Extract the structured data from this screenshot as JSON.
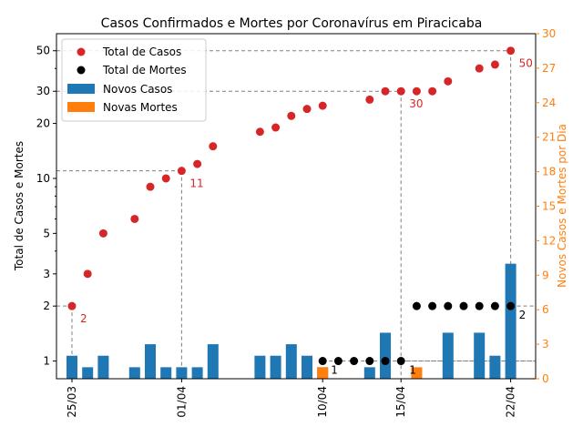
{
  "chart_data": {
    "type": "bar+scatter",
    "title": "Casos Confirmados e Mortes por Coronavírus em Piracicaba",
    "ylabel_left": "Total de Casos e Mortes",
    "ylabel_right": "Novos Casos e Mortes por Dia",
    "y_left_scale": "log",
    "y_left_ticks": [
      "1",
      "2",
      "3",
      "5",
      "10",
      "20",
      "30",
      "50"
    ],
    "y_right_lim": [
      0,
      30
    ],
    "y_right_ticks": [
      "0",
      "3",
      "6",
      "9",
      "12",
      "15",
      "18",
      "21",
      "24",
      "27",
      "30"
    ],
    "x_ticks": [
      {
        "day": 0,
        "label": "25/03"
      },
      {
        "day": 7,
        "label": "01/04"
      },
      {
        "day": 16,
        "label": "10/04"
      },
      {
        "day": 21,
        "label": "15/04"
      },
      {
        "day": 28,
        "label": "22/04"
      }
    ],
    "legend": [
      "Total de Casos",
      "Total de Mortes",
      "Novos Casos",
      "Novas Mortes"
    ],
    "total_cases": [
      {
        "day": 0,
        "value": 2
      },
      {
        "day": 1,
        "value": 3
      },
      {
        "day": 2,
        "value": 5
      },
      {
        "day": 4,
        "value": 6
      },
      {
        "day": 5,
        "value": 9
      },
      {
        "day": 6,
        "value": 10
      },
      {
        "day": 7,
        "value": 11
      },
      {
        "day": 8,
        "value": 12
      },
      {
        "day": 9,
        "value": 15
      },
      {
        "day": 12,
        "value": 18
      },
      {
        "day": 13,
        "value": 19
      },
      {
        "day": 14,
        "value": 22
      },
      {
        "day": 15,
        "value": 24
      },
      {
        "day": 16,
        "value": 25
      },
      {
        "day": 19,
        "value": 27
      },
      {
        "day": 20,
        "value": 30
      },
      {
        "day": 21,
        "value": 30
      },
      {
        "day": 22,
        "value": 30
      },
      {
        "day": 23,
        "value": 30
      },
      {
        "day": 24,
        "value": 34
      },
      {
        "day": 26,
        "value": 40
      },
      {
        "day": 27,
        "value": 42
      },
      {
        "day": 28,
        "value": 50
      }
    ],
    "total_deaths": [
      {
        "day": 16,
        "value": 1
      },
      {
        "day": 17,
        "value": 1
      },
      {
        "day": 18,
        "value": 1
      },
      {
        "day": 19,
        "value": 1
      },
      {
        "day": 20,
        "value": 1
      },
      {
        "day": 21,
        "value": 1
      },
      {
        "day": 22,
        "value": 2
      },
      {
        "day": 23,
        "value": 2
      },
      {
        "day": 24,
        "value": 2
      },
      {
        "day": 25,
        "value": 2
      },
      {
        "day": 26,
        "value": 2
      },
      {
        "day": 27,
        "value": 2
      },
      {
        "day": 28,
        "value": 2
      }
    ],
    "new_cases": [
      {
        "day": 0,
        "value": 2
      },
      {
        "day": 1,
        "value": 1
      },
      {
        "day": 2,
        "value": 2
      },
      {
        "day": 4,
        "value": 1
      },
      {
        "day": 5,
        "value": 3
      },
      {
        "day": 6,
        "value": 1
      },
      {
        "day": 7,
        "value": 1
      },
      {
        "day": 8,
        "value": 1
      },
      {
        "day": 9,
        "value": 3
      },
      {
        "day": 12,
        "value": 2
      },
      {
        "day": 13,
        "value": 2
      },
      {
        "day": 14,
        "value": 3
      },
      {
        "day": 15,
        "value": 2
      },
      {
        "day": 16,
        "value": 1
      },
      {
        "day": 19,
        "value": 1
      },
      {
        "day": 20,
        "value": 4
      },
      {
        "day": 24,
        "value": 4
      },
      {
        "day": 26,
        "value": 4
      },
      {
        "day": 27,
        "value": 2
      },
      {
        "day": 28,
        "value": 10
      }
    ],
    "new_deaths": [
      {
        "day": 16,
        "value": 1
      },
      {
        "day": 22,
        "value": 1
      }
    ],
    "annotations": [
      {
        "text": "2",
        "day": 0,
        "value": 2,
        "series": "cases"
      },
      {
        "text": "11",
        "day": 7,
        "value": 11,
        "series": "cases"
      },
      {
        "text": "30",
        "day": 21,
        "value": 30,
        "series": "cases"
      },
      {
        "text": "50",
        "day": 28,
        "value": 50,
        "series": "cases"
      },
      {
        "text": "1",
        "day": 16,
        "value": 1,
        "series": "deaths"
      },
      {
        "text": "1",
        "day": 21,
        "value": 1,
        "series": "deaths"
      },
      {
        "text": "2",
        "day": 28,
        "value": 2,
        "series": "deaths"
      }
    ],
    "colors": {
      "cases_marker": "#d62728",
      "deaths_marker": "#000000",
      "new_cases_bar": "#1f77b4",
      "new_deaths_bar": "#ff7f0e",
      "right_axis": "#ff7f0e",
      "guide_line": "#808080"
    }
  }
}
